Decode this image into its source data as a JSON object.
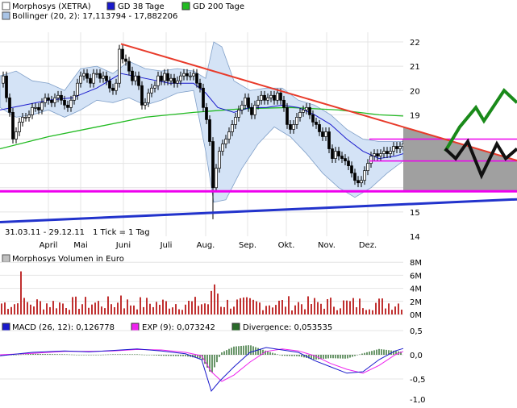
{
  "legend_price": [
    {
      "label": "Morphosys (XETRA)",
      "color": "#ffffff"
    },
    {
      "label": "GD 38 Tage",
      "color": "#1a1acc"
    },
    {
      "label": "GD 200 Tage",
      "color": "#22bb22"
    },
    {
      "label": "Bollinger (20, 2): 17,113794 - 17,882206",
      "color": "#a9c4e6"
    }
  ],
  "legend_volume": {
    "label": "Morphosys Volumen in Euro",
    "color": "#c0c0c0"
  },
  "legend_macd": [
    {
      "label": "MACD (26, 12): 0,126778",
      "color": "#1a1acc"
    },
    {
      "label": "EXP (9): 0,073242",
      "color": "#ee22ee"
    },
    {
      "label": "Divergence: 0,053535",
      "color": "#2a6a2a"
    }
  ],
  "date_range": "31.03.11 - 29.12.11",
  "tick_note": "1 Tick = 1 Tag",
  "chart_data": [
    {
      "type": "candlestick",
      "title": "Morphosys (XETRA)",
      "x": [
        "April",
        "Mai",
        "Juni",
        "Juli",
        "Aug.",
        "Sep.",
        "Okt.",
        "Nov.",
        "Dez."
      ],
      "ylim": [
        14,
        22.5
      ],
      "yticks": [
        "14",
        "15",
        "16",
        "17",
        "18",
        "19",
        "20",
        "21",
        "22"
      ],
      "close_path": [
        [
          0,
          20.3
        ],
        [
          4,
          20.6
        ],
        [
          8,
          19.7
        ],
        [
          12,
          19.1
        ],
        [
          16,
          18.0
        ],
        [
          20,
          18.3
        ],
        [
          24,
          18.7
        ],
        [
          28,
          18.9
        ],
        [
          32,
          18.9
        ],
        [
          36,
          19.0
        ],
        [
          40,
          19.3
        ],
        [
          44,
          19.3
        ],
        [
          48,
          19.2
        ],
        [
          52,
          19.5
        ],
        [
          56,
          19.7
        ],
        [
          60,
          19.6
        ],
        [
          64,
          19.5
        ],
        [
          68,
          19.7
        ],
        [
          72,
          19.8
        ],
        [
          76,
          19.6
        ],
        [
          80,
          19.4
        ],
        [
          84,
          19.3
        ],
        [
          88,
          19.6
        ],
        [
          92,
          19.8
        ],
        [
          96,
          20.3
        ],
        [
          100,
          20.6
        ],
        [
          104,
          20.7
        ],
        [
          108,
          20.5
        ],
        [
          112,
          20.3
        ],
        [
          116,
          20.7
        ],
        [
          120,
          20.7
        ],
        [
          124,
          20.5
        ],
        [
          128,
          20.6
        ],
        [
          132,
          20.4
        ],
        [
          136,
          20.1
        ],
        [
          140,
          20.0
        ],
        [
          144,
          20.3
        ],
        [
          148,
          21.7
        ],
        [
          152,
          21.3
        ],
        [
          156,
          21.2
        ],
        [
          160,
          20.8
        ],
        [
          164,
          20.4
        ],
        [
          168,
          20.6
        ],
        [
          172,
          20.2
        ],
        [
          176,
          19.4
        ],
        [
          180,
          19.5
        ],
        [
          184,
          19.9
        ],
        [
          188,
          20.1
        ],
        [
          192,
          20.2
        ],
        [
          196,
          20.6
        ],
        [
          200,
          20.4
        ],
        [
          204,
          20.7
        ],
        [
          208,
          20.4
        ],
        [
          212,
          20.5
        ],
        [
          216,
          20.3
        ],
        [
          220,
          20.4
        ],
        [
          224,
          20.6
        ],
        [
          228,
          20.7
        ],
        [
          232,
          20.6
        ],
        [
          236,
          20.6
        ],
        [
          240,
          20.7
        ],
        [
          244,
          20.3
        ],
        [
          248,
          20.1
        ],
        [
          252,
          19.3
        ],
        [
          256,
          18.8
        ],
        [
          260,
          17.9
        ],
        [
          264,
          16.0
        ],
        [
          268,
          16.8
        ],
        [
          272,
          17.5
        ],
        [
          276,
          17.8
        ],
        [
          280,
          18.0
        ],
        [
          284,
          18.3
        ],
        [
          288,
          18.6
        ],
        [
          292,
          18.9
        ],
        [
          296,
          19.2
        ],
        [
          300,
          19.4
        ],
        [
          304,
          19.7
        ],
        [
          308,
          19.3
        ],
        [
          312,
          19.0
        ],
        [
          316,
          19.4
        ],
        [
          320,
          19.6
        ],
        [
          324,
          19.8
        ],
        [
          328,
          19.6
        ],
        [
          332,
          19.7
        ],
        [
          336,
          19.8
        ],
        [
          340,
          19.6
        ],
        [
          344,
          19.9
        ],
        [
          348,
          19.6
        ],
        [
          352,
          19.3
        ],
        [
          356,
          18.6
        ],
        [
          360,
          18.4
        ],
        [
          364,
          18.6
        ],
        [
          368,
          18.9
        ],
        [
          372,
          19.1
        ],
        [
          376,
          19.2
        ],
        [
          380,
          19.3
        ],
        [
          384,
          19.0
        ],
        [
          388,
          18.7
        ],
        [
          392,
          18.6
        ],
        [
          396,
          18.3
        ],
        [
          400,
          18.1
        ],
        [
          404,
          18.3
        ],
        [
          408,
          17.6
        ],
        [
          412,
          17.2
        ],
        [
          416,
          17.5
        ],
        [
          420,
          17.3
        ],
        [
          424,
          17.2
        ],
        [
          428,
          17.1
        ],
        [
          432,
          16.9
        ],
        [
          436,
          16.6
        ],
        [
          440,
          16.3
        ],
        [
          444,
          16.2
        ],
        [
          448,
          16.3
        ],
        [
          452,
          16.7
        ],
        [
          456,
          17.0
        ],
        [
          460,
          17.3
        ],
        [
          464,
          17.4
        ],
        [
          468,
          17.3
        ],
        [
          472,
          17.4
        ],
        [
          476,
          17.5
        ],
        [
          480,
          17.4
        ],
        [
          484,
          17.5
        ],
        [
          488,
          17.7
        ],
        [
          492,
          17.6
        ],
        [
          496,
          17.7
        ],
        [
          500,
          17.8
        ]
      ],
      "sma38_path": [
        [
          0,
          19.2
        ],
        [
          30,
          19.4
        ],
        [
          60,
          19.6
        ],
        [
          90,
          19.7
        ],
        [
          120,
          20.1
        ],
        [
          150,
          20.7
        ],
        [
          180,
          20.5
        ],
        [
          210,
          20.3
        ],
        [
          240,
          20.3
        ],
        [
          255,
          19.9
        ],
        [
          270,
          19.3
        ],
        [
          290,
          19.1
        ],
        [
          310,
          19.3
        ],
        [
          330,
          19.3
        ],
        [
          350,
          19.4
        ],
        [
          370,
          19.3
        ],
        [
          390,
          19.0
        ],
        [
          410,
          18.6
        ],
        [
          430,
          18.0
        ],
        [
          450,
          17.5
        ],
        [
          470,
          17.2
        ],
        [
          490,
          17.3
        ],
        [
          500,
          17.4
        ]
      ],
      "sma200_path": [
        [
          0,
          17.6
        ],
        [
          60,
          18.1
        ],
        [
          120,
          18.5
        ],
        [
          180,
          18.9
        ],
        [
          240,
          19.1
        ],
        [
          300,
          19.25
        ],
        [
          360,
          19.3
        ],
        [
          420,
          19.2
        ],
        [
          470,
          19.0
        ],
        [
          500,
          18.95
        ]
      ],
      "bollinger_upper": [
        [
          0,
          20.6
        ],
        [
          20,
          20.8
        ],
        [
          40,
          20.4
        ],
        [
          60,
          20.3
        ],
        [
          80,
          20.0
        ],
        [
          100,
          20.9
        ],
        [
          120,
          21.0
        ],
        [
          140,
          20.7
        ],
        [
          160,
          21.2
        ],
        [
          180,
          20.9
        ],
        [
          200,
          20.8
        ],
        [
          220,
          20.9
        ],
        [
          240,
          20.8
        ],
        [
          255,
          20.5
        ],
        [
          265,
          22.0
        ],
        [
          275,
          21.8
        ],
        [
          290,
          20.4
        ],
        [
          310,
          20.0
        ],
        [
          330,
          20.1
        ],
        [
          350,
          20.1
        ],
        [
          370,
          19.6
        ],
        [
          390,
          19.4
        ],
        [
          410,
          19.0
        ],
        [
          430,
          18.4
        ],
        [
          450,
          18.0
        ],
        [
          470,
          17.9
        ],
        [
          490,
          17.9
        ],
        [
          500,
          17.9
        ]
      ],
      "bollinger_lower": [
        [
          0,
          19.3
        ],
        [
          20,
          18.9
        ],
        [
          40,
          19.0
        ],
        [
          60,
          19.2
        ],
        [
          80,
          18.9
        ],
        [
          100,
          19.2
        ],
        [
          120,
          19.6
        ],
        [
          140,
          19.5
        ],
        [
          160,
          19.7
        ],
        [
          180,
          19.4
        ],
        [
          200,
          19.6
        ],
        [
          220,
          19.9
        ],
        [
          240,
          20.0
        ],
        [
          255,
          17.5
        ],
        [
          265,
          15.4
        ],
        [
          280,
          15.5
        ],
        [
          300,
          16.8
        ],
        [
          320,
          17.8
        ],
        [
          340,
          18.5
        ],
        [
          360,
          18.1
        ],
        [
          380,
          17.4
        ],
        [
          400,
          16.6
        ],
        [
          420,
          16.0
        ],
        [
          440,
          15.6
        ],
        [
          460,
          16.0
        ],
        [
          480,
          16.6
        ],
        [
          500,
          17.1
        ]
      ],
      "annotations": {
        "resistance_red": [
          [
            150,
            21.92
          ],
          [
            641,
            17.12
          ]
        ],
        "support_blue": [
          [
            0,
            14.58
          ],
          [
            641,
            15.52
          ]
        ],
        "magenta_levels": [
          15.85,
          17.1,
          18.0
        ],
        "projection_green": [
          [
            552,
            17.5
          ],
          [
            570,
            18.5
          ],
          [
            590,
            19.3
          ],
          [
            600,
            18.75
          ],
          [
            625,
            20.0
          ],
          [
            641,
            19.5
          ]
        ],
        "projection_black": [
          [
            552,
            17.6
          ],
          [
            565,
            17.2
          ],
          [
            580,
            17.9
          ],
          [
            597,
            16.5
          ],
          [
            616,
            17.8
          ],
          [
            627,
            17.2
          ],
          [
            641,
            17.6
          ]
        ]
      }
    },
    {
      "type": "bar",
      "title": "Morphosys Volumen in Euro",
      "yticks": [
        "8M",
        "6M",
        "4M",
        "2M",
        "0M"
      ],
      "ylim": [
        0,
        8
      ]
    },
    {
      "type": "line",
      "title": "MACD (26, 12)",
      "ylim": [
        -1.0,
        0.5
      ],
      "yticks": [
        "0,5",
        "0,0",
        "-0,5",
        "-1,0"
      ],
      "macd_path": [
        [
          0,
          -0.02
        ],
        [
          40,
          0.05
        ],
        [
          80,
          0.08
        ],
        [
          110,
          0.06
        ],
        [
          140,
          0.09
        ],
        [
          170,
          0.12
        ],
        [
          200,
          0.08
        ],
        [
          230,
          0.02
        ],
        [
          250,
          -0.1
        ],
        [
          262,
          -0.75
        ],
        [
          272,
          -0.55
        ],
        [
          290,
          -0.25
        ],
        [
          310,
          0.05
        ],
        [
          330,
          0.15
        ],
        [
          350,
          0.1
        ],
        [
          370,
          0.05
        ],
        [
          390,
          -0.12
        ],
        [
          410,
          -0.25
        ],
        [
          430,
          -0.38
        ],
        [
          450,
          -0.35
        ],
        [
          470,
          -0.1
        ],
        [
          490,
          0.08
        ],
        [
          500,
          0.13
        ]
      ],
      "signal_path": [
        [
          0,
          0.0
        ],
        [
          40,
          0.03
        ],
        [
          80,
          0.07
        ],
        [
          110,
          0.07
        ],
        [
          140,
          0.08
        ],
        [
          170,
          0.11
        ],
        [
          200,
          0.1
        ],
        [
          230,
          0.05
        ],
        [
          250,
          -0.02
        ],
        [
          262,
          -0.35
        ],
        [
          275,
          -0.55
        ],
        [
          290,
          -0.42
        ],
        [
          310,
          -0.15
        ],
        [
          330,
          0.07
        ],
        [
          350,
          0.12
        ],
        [
          370,
          0.08
        ],
        [
          390,
          -0.02
        ],
        [
          410,
          -0.18
        ],
        [
          430,
          -0.3
        ],
        [
          450,
          -0.38
        ],
        [
          470,
          -0.22
        ],
        [
          490,
          0.0
        ],
        [
          500,
          0.07
        ]
      ]
    }
  ]
}
